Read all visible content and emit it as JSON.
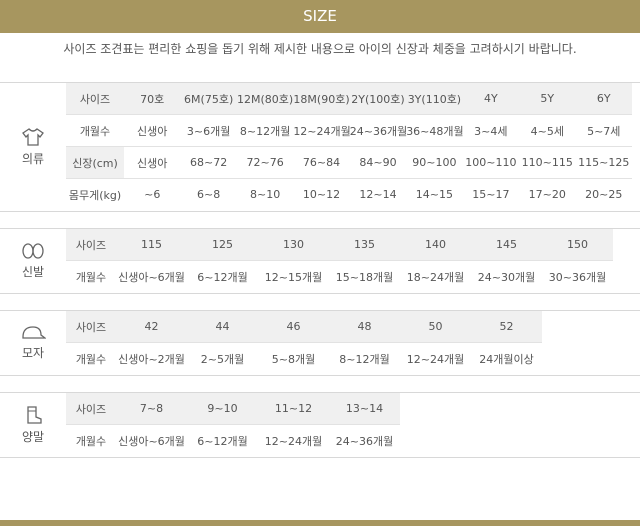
{
  "header": {
    "title": "SIZE",
    "subtitle": "사이즈 조견표는 편리한 쇼핑을 돕기 위해 제시한 내용으로 아이의 신장과 체중을 고려하시기 바랍니다."
  },
  "sections": [
    {
      "label": "의류",
      "rows": [
        [
          "사이즈",
          "70호",
          "6M(75호)",
          "12M(80호)",
          "18M(90호)",
          "2Y(100호)",
          "3Y(110호)",
          "4Y",
          "5Y",
          "6Y"
        ],
        [
          "개월수",
          "신생아",
          "3~6개월",
          "8~12개월",
          "12~24개월",
          "24~36개월",
          "36~48개월",
          "3~4세",
          "4~5세",
          "5~7세"
        ],
        [
          "신장(cm)",
          "신생아",
          "68~72",
          "72~76",
          "76~84",
          "84~90",
          "90~100",
          "100~110",
          "110~115",
          "115~125"
        ],
        [
          "몸무게(kg)",
          "~6",
          "6~8",
          "8~10",
          "10~12",
          "12~14",
          "14~15",
          "15~17",
          "17~20",
          "20~25"
        ]
      ]
    },
    {
      "label": "신발",
      "rows": [
        [
          "사이즈",
          "115",
          "125",
          "130",
          "135",
          "140",
          "145",
          "150"
        ],
        [
          "개월수",
          "신생아~6개월",
          "6~12개월",
          "12~15개월",
          "15~18개월",
          "18~24개월",
          "24~30개월",
          "30~36개월"
        ]
      ]
    },
    {
      "label": "모자",
      "rows": [
        [
          "사이즈",
          "42",
          "44",
          "46",
          "48",
          "50",
          "52"
        ],
        [
          "개월수",
          "신생아~2개월",
          "2~5개월",
          "5~8개월",
          "8~12개월",
          "12~24개월",
          "24개월이상"
        ]
      ]
    },
    {
      "label": "양말",
      "rows": [
        [
          "사이즈",
          "7~8",
          "9~10",
          "11~12",
          "13~14"
        ],
        [
          "개월수",
          "신생아~6개월",
          "6~12개월",
          "12~24개월",
          "24~36개월"
        ]
      ]
    }
  ]
}
